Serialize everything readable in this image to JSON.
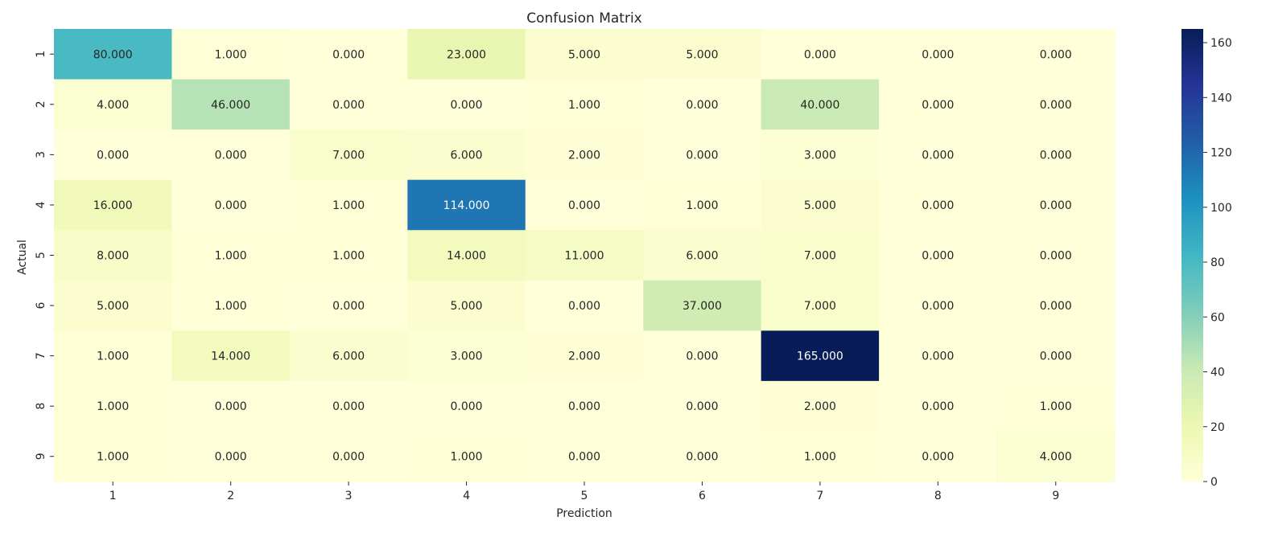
{
  "chart_data": {
    "type": "heatmap",
    "title": "Confusion Matrix",
    "xlabel": "Prediction",
    "ylabel": "Actual",
    "x_categories": [
      "1",
      "2",
      "3",
      "4",
      "5",
      "6",
      "7",
      "8",
      "9"
    ],
    "y_categories": [
      "1",
      "2",
      "3",
      "4",
      "5",
      "6",
      "7",
      "8",
      "9"
    ],
    "values": [
      [
        80,
        1,
        0,
        23,
        5,
        5,
        0,
        0,
        0
      ],
      [
        4,
        46,
        0,
        0,
        1,
        0,
        40,
        0,
        0
      ],
      [
        0,
        0,
        7,
        6,
        2,
        0,
        3,
        0,
        0
      ],
      [
        16,
        0,
        1,
        114,
        0,
        1,
        5,
        0,
        0
      ],
      [
        8,
        1,
        1,
        14,
        11,
        6,
        7,
        0,
        0
      ],
      [
        5,
        1,
        0,
        5,
        0,
        37,
        7,
        0,
        0
      ],
      [
        1,
        14,
        6,
        3,
        2,
        0,
        165,
        0,
        0
      ],
      [
        1,
        0,
        0,
        0,
        0,
        0,
        2,
        0,
        1
      ],
      [
        1,
        0,
        0,
        1,
        0,
        0,
        1,
        0,
        4
      ]
    ],
    "value_format_decimals": 3,
    "colormap": "YlGnBu",
    "vmin": 0,
    "vmax": 165,
    "colorbar_ticks": [
      0,
      20,
      40,
      60,
      80,
      100,
      120,
      140,
      160
    ],
    "grid": false,
    "colorbar_placement": "right"
  }
}
